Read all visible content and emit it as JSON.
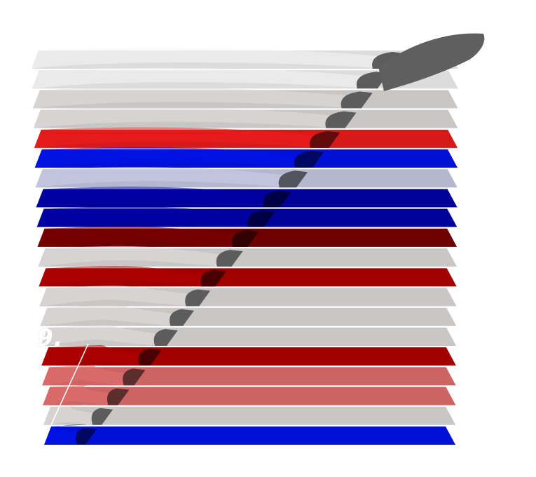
{
  "annotation": {
    "label": "9."
  },
  "palette": {
    "grey": "#c9c6c6",
    "grey_light": "#dcdcdc",
    "red": "#d61a1a",
    "red_dark": "#6e0000",
    "red_mid": "#a10000",
    "red_pale": "#cc6464",
    "blue": "#0010d6",
    "blue_dark": "#00009a",
    "lavender": "#b4b8cf",
    "fin": "#5c5c5c"
  },
  "layers": [
    {
      "name": "layer-1",
      "color": "grey_light"
    },
    {
      "name": "layer-2",
      "color": "grey_light"
    },
    {
      "name": "layer-3",
      "color": "grey"
    },
    {
      "name": "layer-4",
      "color": "grey"
    },
    {
      "name": "layer-5",
      "color": "red"
    },
    {
      "name": "layer-6",
      "color": "blue"
    },
    {
      "name": "layer-7",
      "color": "lavender"
    },
    {
      "name": "layer-8",
      "color": "blue_dark"
    },
    {
      "name": "layer-9",
      "color": "blue_dark"
    },
    {
      "name": "layer-10",
      "color": "red_dark"
    },
    {
      "name": "layer-11",
      "color": "grey"
    },
    {
      "name": "layer-12",
      "color": "red_mid"
    },
    {
      "name": "layer-13",
      "color": "grey"
    },
    {
      "name": "layer-14",
      "color": "grey"
    },
    {
      "name": "layer-15",
      "color": "grey"
    },
    {
      "name": "layer-16",
      "color": "red_mid"
    },
    {
      "name": "layer-17",
      "color": "red_pale"
    },
    {
      "name": "layer-18",
      "color": "red_pale"
    },
    {
      "name": "layer-19",
      "color": "grey"
    },
    {
      "name": "layer-20",
      "color": "blue"
    }
  ]
}
